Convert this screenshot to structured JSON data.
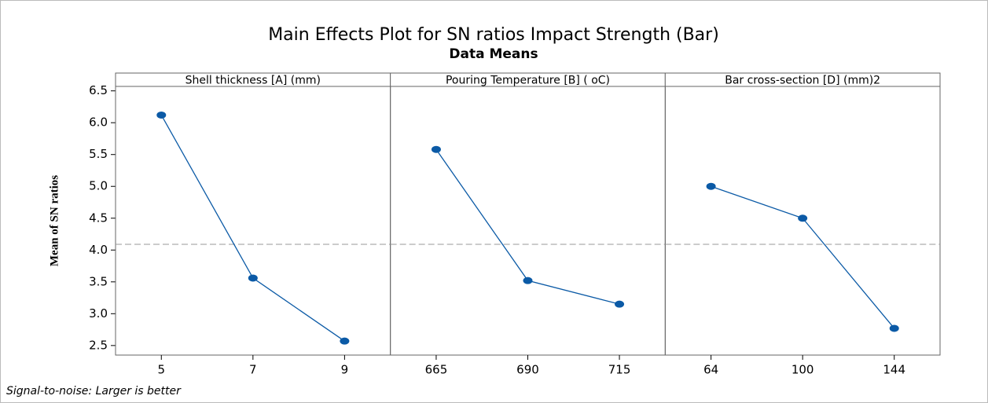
{
  "chart_data": {
    "type": "line",
    "title": "Main Effects Plot for SN ratios Impact Strength (Bar)",
    "subtitle": "Data Means",
    "y_label": "Mean of SN ratios",
    "footnote": "Signal-to-noise: Larger is better",
    "color": "#0b5aa6",
    "reference_line": 4.09,
    "ylim": [
      2.35,
      6.57
    ],
    "yticks": [
      2.5,
      {
        "value": 3,
        "label": "3.0"
      },
      3.5,
      {
        "value": 4,
        "label": "4.0"
      },
      4.5,
      {
        "value": 5,
        "label": "5.0"
      },
      5.5,
      {
        "value": 6,
        "label": "6.0"
      },
      6.5
    ],
    "panels": [
      {
        "title": "Shell thickness [A] (mm)",
        "categories": [
          "5",
          "7",
          "9"
        ],
        "values": [
          6.12,
          3.56,
          2.57
        ]
      },
      {
        "title": "Pouring Temperature [B] ( oC)",
        "categories": [
          "665",
          "690",
          "715"
        ],
        "values": [
          5.58,
          3.52,
          3.15
        ]
      },
      {
        "title": "Bar cross-section [D] (mm)2",
        "categories": [
          "64",
          "100",
          "144"
        ],
        "values": [
          5.0,
          4.5,
          2.77
        ]
      }
    ]
  }
}
